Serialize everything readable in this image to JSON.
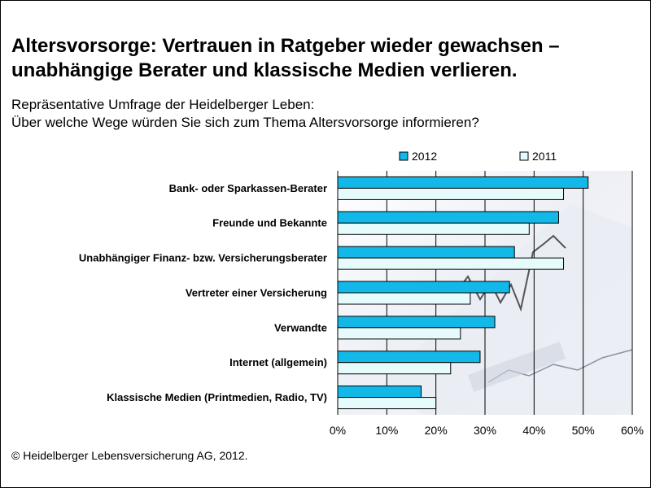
{
  "title_lines": [
    "Altersvorsorge: Vertrauen in Ratgeber wieder gewachsen –",
    "unabhängige Berater und klassische Medien verlieren."
  ],
  "subtitle_lines": [
    "Repräsentative Umfrage der Heidelberger Leben:",
    "Über welche Wege würden Sie sich zum Thema Altersvorsorge informieren?"
  ],
  "footer": "© Heidelberger Lebensversicherung AG, 2012.",
  "colors": {
    "series_2012": "#12b8e8",
    "series_2011": "#e6fbfb",
    "bar_stroke": "#000000",
    "gridline": "#000000"
  },
  "chart_data": {
    "type": "bar",
    "orientation": "horizontal",
    "categories": [
      "Bank- oder Sparkassen-Berater",
      "Freunde und Bekannte",
      "Unabhängiger Finanz- bzw. Versicherungsberater",
      "Vertreter einer Versicherung",
      "Verwandte",
      "Internet (allgemein)",
      "Klassische Medien (Printmedien, Radio, TV)"
    ],
    "series": [
      {
        "name": "2012",
        "values": [
          51,
          45,
          36,
          35,
          32,
          29,
          17
        ]
      },
      {
        "name": "2011",
        "values": [
          46,
          39,
          46,
          27,
          25,
          23,
          20
        ]
      }
    ],
    "xlim": [
      0,
      60
    ],
    "xticks": [
      0,
      10,
      20,
      30,
      40,
      50,
      60
    ],
    "xtick_labels": [
      "0%",
      "10%",
      "20%",
      "30%",
      "40%",
      "50%",
      "60%"
    ],
    "xlabel": "",
    "ylabel": "",
    "grid": "vertical",
    "legend": "top",
    "background_image": "financial-newspaper-chart-photo"
  }
}
